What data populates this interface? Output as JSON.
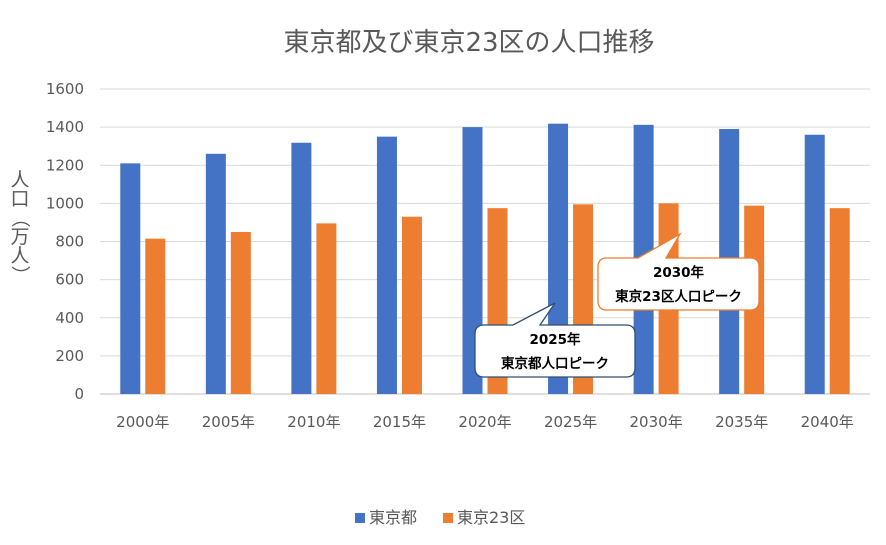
{
  "chart_data": {
    "type": "bar",
    "title": "東京都及び東京23区の人口推移",
    "ylabel": "人口（万人）",
    "xlabel": "",
    "categories": [
      "2000年",
      "2005年",
      "2010年",
      "2015年",
      "2020年",
      "2025年",
      "2030年",
      "2035年",
      "2040年"
    ],
    "series": [
      {
        "name": "東京都",
        "color": "#4472C4",
        "values": [
          1210,
          1260,
          1318,
          1350,
          1400,
          1418,
          1412,
          1390,
          1360
        ]
      },
      {
        "name": "東京23区",
        "color": "#ED7D31",
        "values": [
          815,
          850,
          895,
          930,
          975,
          995,
          1000,
          988,
          975
        ]
      }
    ],
    "ylim": [
      0,
      1600
    ],
    "yticks": [
      0,
      200,
      400,
      600,
      800,
      1000,
      1200,
      1400,
      1600
    ],
    "grid": true,
    "legend_position": "bottom",
    "annotations": [
      {
        "year_label": "2025年",
        "text": "東京都人口ピーク",
        "border_color": "#2F4F6F",
        "points_to_series": "東京都",
        "points_to_category": "2025年"
      },
      {
        "year_label": "2030年",
        "text": "東京23区人口ピーク",
        "border_color": "#ED7D31",
        "points_to_series": "東京23区",
        "points_to_category": "2030年"
      }
    ]
  }
}
